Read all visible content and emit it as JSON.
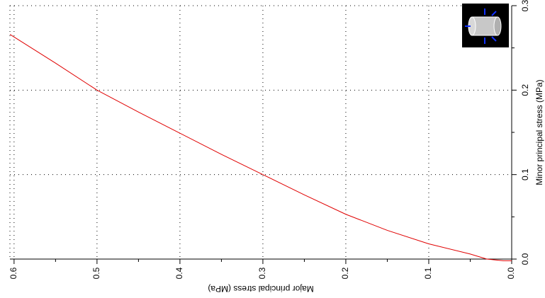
{
  "chart_data": {
    "type": "line",
    "x_label": "Major principal stress (MPa)",
    "y_label": "Minor principal stress (MPa)",
    "x": [
      0.605,
      0.55,
      0.5,
      0.45,
      0.4,
      0.35,
      0.3,
      0.25,
      0.2,
      0.15,
      0.1,
      0.05,
      0.03,
      0.01,
      0.0
    ],
    "series": [
      {
        "color": "#e00000",
        "values": [
          0.266,
          0.232,
          0.2,
          0.174,
          0.149,
          0.124,
          0.1,
          0.076,
          0.053,
          0.034,
          0.018,
          0.006,
          0.0,
          -0.002,
          -0.002
        ]
      }
    ],
    "xlim": [
      0.605,
      0.0
    ],
    "xticks": [
      0.6,
      0.5,
      0.4,
      0.3,
      0.2,
      0.1,
      {
        "value": 0,
        "label": "0.0"
      }
    ],
    "xminorticks": [
      0.55,
      0.45,
      0.35,
      0.25,
      0.15,
      0.05
    ],
    "ylim": [
      0,
      0.3
    ],
    "yticks": [
      {
        "value": 0,
        "label": "0.0"
      },
      0.1,
      0.2,
      0.3
    ],
    "yminorticks": [
      0.05,
      0.15,
      0.25
    ],
    "grid": true
  }
}
